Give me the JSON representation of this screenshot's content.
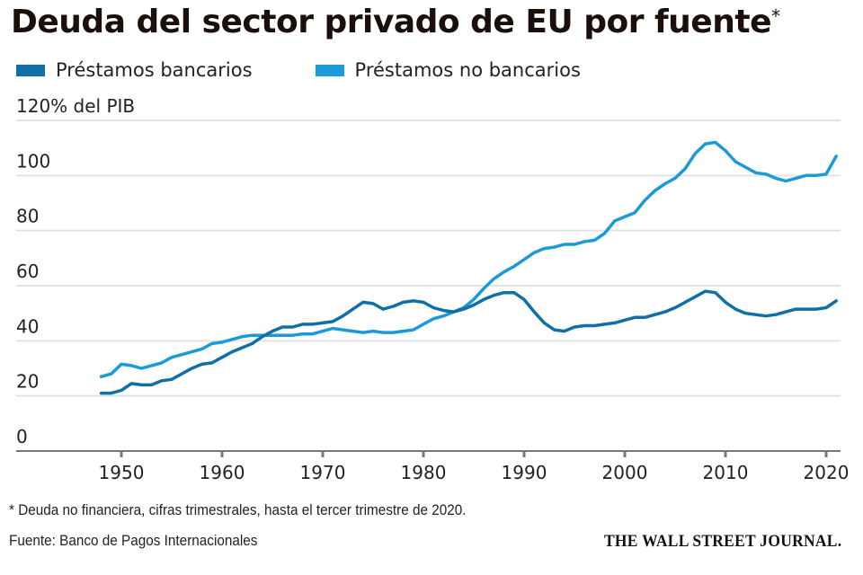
{
  "chart_data": {
    "type": "line",
    "title": "Deuda del sector privado de EU por fuente",
    "title_marker": "*",
    "ylabel": "% del PIB",
    "y_top_label": "120% del PIB",
    "xlabel": "",
    "ylim": [
      0,
      120
    ],
    "xlim": [
      1941.5,
      2021.5
    ],
    "yticks": [
      0,
      20,
      40,
      60,
      80,
      100,
      120
    ],
    "ytick_labels": [
      "0",
      "20",
      "40",
      "60",
      "80",
      "100",
      "120% del PIB"
    ],
    "xticks": [
      1950,
      1960,
      1970,
      1980,
      1990,
      2000,
      2010,
      2020
    ],
    "xtick_labels": [
      "1950",
      "1960",
      "1970",
      "1980",
      "1990",
      "2000",
      "2010",
      "2020"
    ],
    "grid": true,
    "legend_position": "top-left",
    "x": [
      1948,
      1949,
      1950,
      1951,
      1952,
      1953,
      1954,
      1955,
      1956,
      1957,
      1958,
      1959,
      1960,
      1961,
      1962,
      1963,
      1964,
      1965,
      1966,
      1967,
      1968,
      1969,
      1970,
      1971,
      1972,
      1973,
      1974,
      1975,
      1976,
      1977,
      1978,
      1979,
      1980,
      1981,
      1982,
      1983,
      1984,
      1985,
      1986,
      1987,
      1988,
      1989,
      1990,
      1991,
      1992,
      1993,
      1994,
      1995,
      1996,
      1997,
      1998,
      1999,
      2000,
      2001,
      2002,
      2003,
      2004,
      2005,
      2006,
      2007,
      2008,
      2009,
      2010,
      2011,
      2012,
      2013,
      2014,
      2015,
      2016,
      2017,
      2018,
      2019,
      2020,
      2021
    ],
    "series": [
      {
        "name": "Préstamos bancarios",
        "color": "#0f6fa6",
        "values": [
          21,
          21,
          22,
          24.5,
          24,
          24,
          25.5,
          26,
          28,
          30,
          31.5,
          32,
          34,
          36,
          37.5,
          39,
          41.5,
          43.5,
          45,
          45,
          46,
          46,
          46.5,
          47,
          49,
          51.5,
          54,
          53.5,
          51.5,
          52.5,
          54,
          54.5,
          54,
          52,
          51,
          50.5,
          51.5,
          53,
          55,
          56.5,
          57.5,
          57.5,
          55,
          50.5,
          46.5,
          44,
          43.5,
          45,
          45.5,
          45.5,
          46,
          46.5,
          47.5,
          48.5,
          48.5,
          49.5,
          50.5,
          52,
          54,
          56,
          58,
          57.5,
          54,
          51.5,
          50,
          49.5,
          49,
          49.5,
          50.5,
          51.5,
          51.5,
          51.5,
          52,
          54.5
        ]
      },
      {
        "name": "Préstamos no bancarios",
        "color": "#1a9ad8",
        "values": [
          27,
          28,
          31.5,
          31,
          30,
          31,
          32,
          34,
          35,
          36,
          37,
          39,
          39.5,
          40.5,
          41.5,
          42,
          42,
          42,
          42,
          42,
          42.5,
          42.5,
          43.5,
          44.5,
          44,
          43.5,
          43,
          43.5,
          43,
          43,
          43.5,
          44,
          46,
          48,
          49,
          50.5,
          52,
          55,
          59,
          62.5,
          65,
          67,
          69.5,
          72,
          73.5,
          74,
          75,
          75,
          76,
          76.5,
          79,
          83.5,
          85,
          86.5,
          91,
          94.5,
          97,
          99,
          102.5,
          108,
          111.5,
          112,
          109,
          105,
          103,
          101,
          100.5,
          99,
          98,
          99,
          100,
          100,
          100.5,
          107
        ]
      }
    ],
    "footnote": "* Deuda no financiera, cifras trimestrales, hasta el tercer trimestre de 2020.",
    "source": "Fuente: Banco de Pagos Internacionales",
    "brand": "THE WALL STREET JOURNAL."
  }
}
